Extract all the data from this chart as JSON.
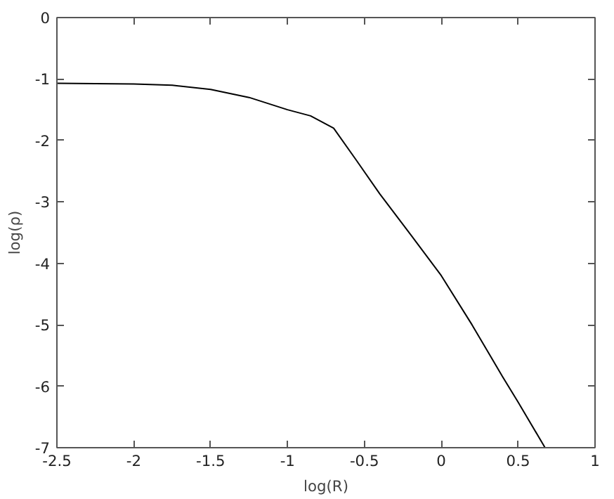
{
  "chart_data": {
    "type": "line",
    "xlabel": "log(R)",
    "ylabel": "log(ρ)",
    "x": [
      -2.5,
      -2.0,
      -1.75,
      -1.5,
      -1.25,
      -1.0,
      -0.85,
      -0.7,
      -0.55,
      -0.4,
      -0.2,
      0.0,
      0.2,
      0.4,
      0.5,
      0.675
    ],
    "series": [
      {
        "color": "#000000",
        "values": [
          -1.07,
          -1.08,
          -1.1,
          -1.17,
          -1.3,
          -1.5,
          -1.6,
          -1.8,
          -2.33,
          -2.87,
          -3.53,
          -4.2,
          -5.0,
          -5.85,
          -6.26,
          -7.0
        ]
      }
    ],
    "xlim": [
      -2.5,
      1
    ],
    "ylim": [
      -7,
      0
    ],
    "xticks": [
      -2.5,
      -2,
      -1.5,
      -1,
      -0.5,
      0,
      0.5,
      1
    ],
    "yticks": [
      -7,
      -6,
      -5,
      -4,
      -3,
      -2,
      -1,
      0
    ],
    "grid": false,
    "marker": "none",
    "line_style": "solid"
  }
}
